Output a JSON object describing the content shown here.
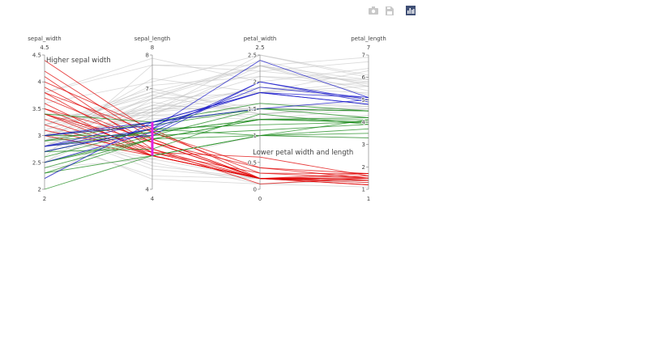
{
  "modebar": {
    "buttons": [
      {
        "icon": "camera-icon",
        "title": "Download plot as a png"
      },
      {
        "icon": "save-icon",
        "title": "Save"
      },
      {
        "icon": "plotly-logo-icon",
        "title": "Produced with Plotly"
      }
    ]
  },
  "chart_data": {
    "type": "parallel_coordinates",
    "dimensions": [
      {
        "label": "sepal_width",
        "range": [
          2,
          4.5
        ],
        "ticks": [
          "2",
          "2.5",
          "3",
          "3.5",
          "4",
          "4.5"
        ],
        "top_label": "4.5",
        "bottom_label": "2"
      },
      {
        "label": "sepal_length",
        "range": [
          4,
          8
        ],
        "ticks": [
          "4",
          "7",
          "8"
        ],
        "top_label": "8",
        "bottom_label": "4",
        "constraint_range": [
          5,
          6
        ]
      },
      {
        "label": "petal_width",
        "range": [
          0,
          2.5
        ],
        "ticks": [
          "0",
          "0.5",
          "1",
          "1.5",
          "2",
          "2.5"
        ],
        "top_label": "2.5",
        "bottom_label": "0"
      },
      {
        "label": "petal_length",
        "range": [
          1,
          7
        ],
        "ticks": [
          "1",
          "2",
          "3",
          "4",
          "5",
          "6",
          "7"
        ],
        "top_label": "7",
        "bottom_label": "1"
      }
    ],
    "species_colors": {
      "1": "#e00000",
      "2": "#1a8a1a",
      "3": "#1010c8"
    },
    "unselected_color": "#bdbdbd",
    "brush_color": "#e020e0",
    "annotations": [
      "Higher sepal width",
      "Lower petal width and length"
    ],
    "records": [
      [
        3.5,
        5.1,
        0.2,
        1.4,
        1
      ],
      [
        3.7,
        5.4,
        0.2,
        1.5,
        1
      ],
      [
        3.9,
        5.4,
        0.4,
        1.7,
        1
      ],
      [
        3.4,
        5.0,
        0.2,
        1.5,
        1
      ],
      [
        4.4,
        5.7,
        0.4,
        1.5,
        1
      ],
      [
        4.1,
        5.2,
        0.1,
        1.5,
        1
      ],
      [
        4.2,
        5.5,
        0.2,
        1.4,
        1
      ],
      [
        3.8,
        5.1,
        0.3,
        1.5,
        1
      ],
      [
        3.3,
        5.0,
        0.2,
        1.4,
        1
      ],
      [
        3.4,
        5.4,
        0.2,
        1.7,
        1
      ],
      [
        3.0,
        5.0,
        0.2,
        1.6,
        1
      ],
      [
        3.8,
        5.7,
        0.3,
        1.7,
        1
      ],
      [
        3.5,
        5.5,
        0.2,
        1.3,
        1
      ],
      [
        3.2,
        5.0,
        0.2,
        1.2,
        1
      ],
      [
        3.4,
        5.2,
        0.2,
        1.4,
        1
      ],
      [
        3.1,
        5.1,
        0.6,
        1.6,
        1
      ],
      [
        4.0,
        5.8,
        0.2,
        1.2,
        1
      ],
      [
        3.6,
        5.0,
        0.2,
        1.4,
        1
      ],
      [
        2.0,
        5.0,
        1.0,
        3.5,
        2
      ],
      [
        2.3,
        5.5,
        1.3,
        4.0,
        2
      ],
      [
        2.7,
        5.8,
        1.0,
        4.1,
        2
      ],
      [
        2.9,
        5.7,
        1.3,
        4.2,
        2
      ],
      [
        3.0,
        5.9,
        1.5,
        4.2,
        2
      ],
      [
        2.5,
        5.6,
        1.1,
        3.9,
        2
      ],
      [
        2.8,
        5.7,
        1.3,
        4.1,
        2
      ],
      [
        2.4,
        5.5,
        1.0,
        3.7,
        2
      ],
      [
        2.6,
        5.8,
        1.2,
        4.0,
        2
      ],
      [
        3.0,
        5.6,
        1.5,
        4.5,
        2
      ],
      [
        2.7,
        5.2,
        1.4,
        3.9,
        2
      ],
      [
        2.9,
        6.0,
        1.5,
        4.5,
        2
      ],
      [
        2.3,
        5.0,
        1.0,
        3.3,
        2
      ],
      [
        3.4,
        6.0,
        1.6,
        4.5,
        2
      ],
      [
        2.5,
        5.5,
        1.3,
        4.0,
        2
      ],
      [
        2.2,
        6.0,
        1.5,
        5.0,
        3
      ],
      [
        2.8,
        5.8,
        2.4,
        5.1,
        3
      ],
      [
        2.7,
        5.8,
        1.9,
        5.1,
        3
      ],
      [
        3.0,
        5.9,
        1.8,
        5.1,
        3
      ],
      [
        2.8,
        5.6,
        2.0,
        4.9,
        3
      ],
      [
        2.5,
        5.7,
        2.0,
        5.0,
        3
      ],
      [
        2.8,
        6.0,
        1.8,
        4.8,
        3
      ],
      [
        3.0,
        6.0,
        1.8,
        4.8,
        3
      ],
      [
        3.0,
        6.5,
        2.2,
        5.8,
        3
      ],
      [
        3.3,
        6.3,
        2.5,
        6.0,
        3
      ],
      [
        2.9,
        6.3,
        1.8,
        5.6,
        3
      ],
      [
        3.0,
        7.1,
        2.1,
        5.9,
        3
      ],
      [
        2.9,
        7.3,
        1.8,
        6.3,
        3
      ],
      [
        3.6,
        7.2,
        2.5,
        6.1,
        3
      ],
      [
        3.8,
        7.7,
        2.2,
        6.7,
        3
      ],
      [
        2.6,
        7.7,
        2.3,
        6.9,
        3
      ],
      [
        3.2,
        6.9,
        2.3,
        5.7,
        3
      ],
      [
        2.8,
        6.4,
        2.1,
        5.6,
        3
      ],
      [
        3.2,
        7.0,
        1.4,
        4.7,
        2
      ],
      [
        3.2,
        6.4,
        1.5,
        4.5,
        2
      ],
      [
        3.1,
        6.9,
        1.5,
        4.9,
        2
      ],
      [
        2.8,
        6.5,
        1.5,
        4.6,
        2
      ],
      [
        3.3,
        6.3,
        1.6,
        4.7,
        2
      ],
      [
        2.9,
        6.6,
        1.3,
        4.6,
        2
      ],
      [
        2.2,
        6.2,
        1.5,
        4.5,
        2
      ],
      [
        3.0,
        4.9,
        0.2,
        1.4,
        1
      ],
      [
        3.2,
        4.7,
        0.2,
        1.3,
        1
      ],
      [
        3.1,
        4.6,
        0.2,
        1.5,
        1
      ],
      [
        2.9,
        4.4,
        0.2,
        1.4,
        1
      ],
      [
        3.0,
        4.3,
        0.1,
        1.1,
        1
      ],
      [
        3.0,
        4.8,
        0.1,
        1.4,
        1
      ],
      [
        2.4,
        4.9,
        1.0,
        3.3,
        2
      ],
      [
        3.4,
        6.2,
        2.3,
        5.4,
        3
      ],
      [
        3.0,
        6.7,
        2.3,
        5.2,
        3
      ],
      [
        3.8,
        7.9,
        2.0,
        6.4,
        3
      ],
      [
        2.8,
        6.8,
        1.4,
        4.8,
        2
      ],
      [
        3.0,
        6.1,
        1.4,
        4.6,
        2
      ],
      [
        2.5,
        6.3,
        1.9,
        5.0,
        3
      ],
      [
        3.1,
        6.7,
        2.4,
        5.6,
        3
      ],
      [
        2.7,
        6.4,
        1.9,
        5.3,
        3
      ],
      [
        3.2,
        6.8,
        2.3,
        5.9,
        3
      ],
      [
        2.5,
        6.7,
        1.8,
        5.8,
        3
      ],
      [
        2.9,
        6.2,
        1.3,
        4.3,
        2
      ]
    ]
  }
}
